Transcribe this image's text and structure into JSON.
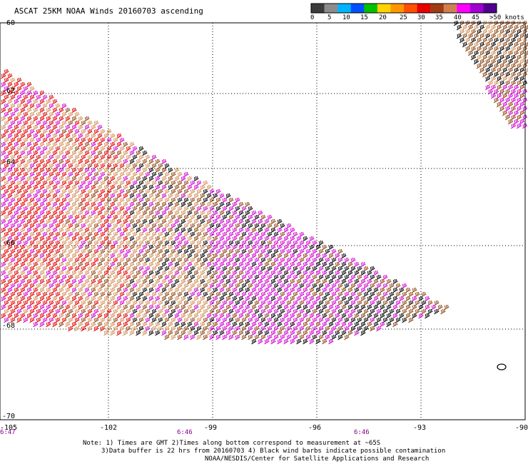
{
  "title": "ASCAT 25KM NOAA Winds 20160703 ascending",
  "map": {
    "lon_ticks": [
      "-105",
      "-102",
      "-99",
      "-96",
      "-93",
      "-90"
    ],
    "lat_ticks": [
      "-60",
      "-62",
      "-64",
      "-66",
      "-68",
      "-70"
    ],
    "lon_range": [
      -105,
      -90
    ],
    "lat_range": [
      -70,
      -60
    ],
    "pass_times": [
      {
        "label": "6:47",
        "lon": -105
      },
      {
        "label": "6:46",
        "lon": -100.5
      },
      {
        "label": "6:46",
        "lon": -95.5
      }
    ]
  },
  "colorbar": {
    "labels": [
      "0",
      "5",
      "10",
      "15",
      "20",
      "25",
      "30",
      "35",
      "40",
      "45",
      ">50 knots"
    ],
    "colors": [
      "#3c3c3c",
      "#8c8c8c",
      "#00b4ff",
      "#0050ff",
      "#00c000",
      "#ffd200",
      "#ff9600",
      "#ff5000",
      "#e60000",
      "#a03c14",
      "#d08050",
      "#ff00ff",
      "#a000d0",
      "#500090"
    ]
  },
  "barb_colors": {
    "black": "#000000",
    "brown": "#8b4513",
    "tan": "#d2905a",
    "red": "#e00000",
    "magenta": "#d000d0"
  },
  "notes": [
    "Note: 1) Times are GMT 2)Times along bottom correspond to measurement at ~65S",
    "3)Data buffer is 22 hrs from 20160703 4) Black wind barbs indicate possible contamination",
    "NOAA/NESDIS/Center for Satellite Applications and Research"
  ]
}
